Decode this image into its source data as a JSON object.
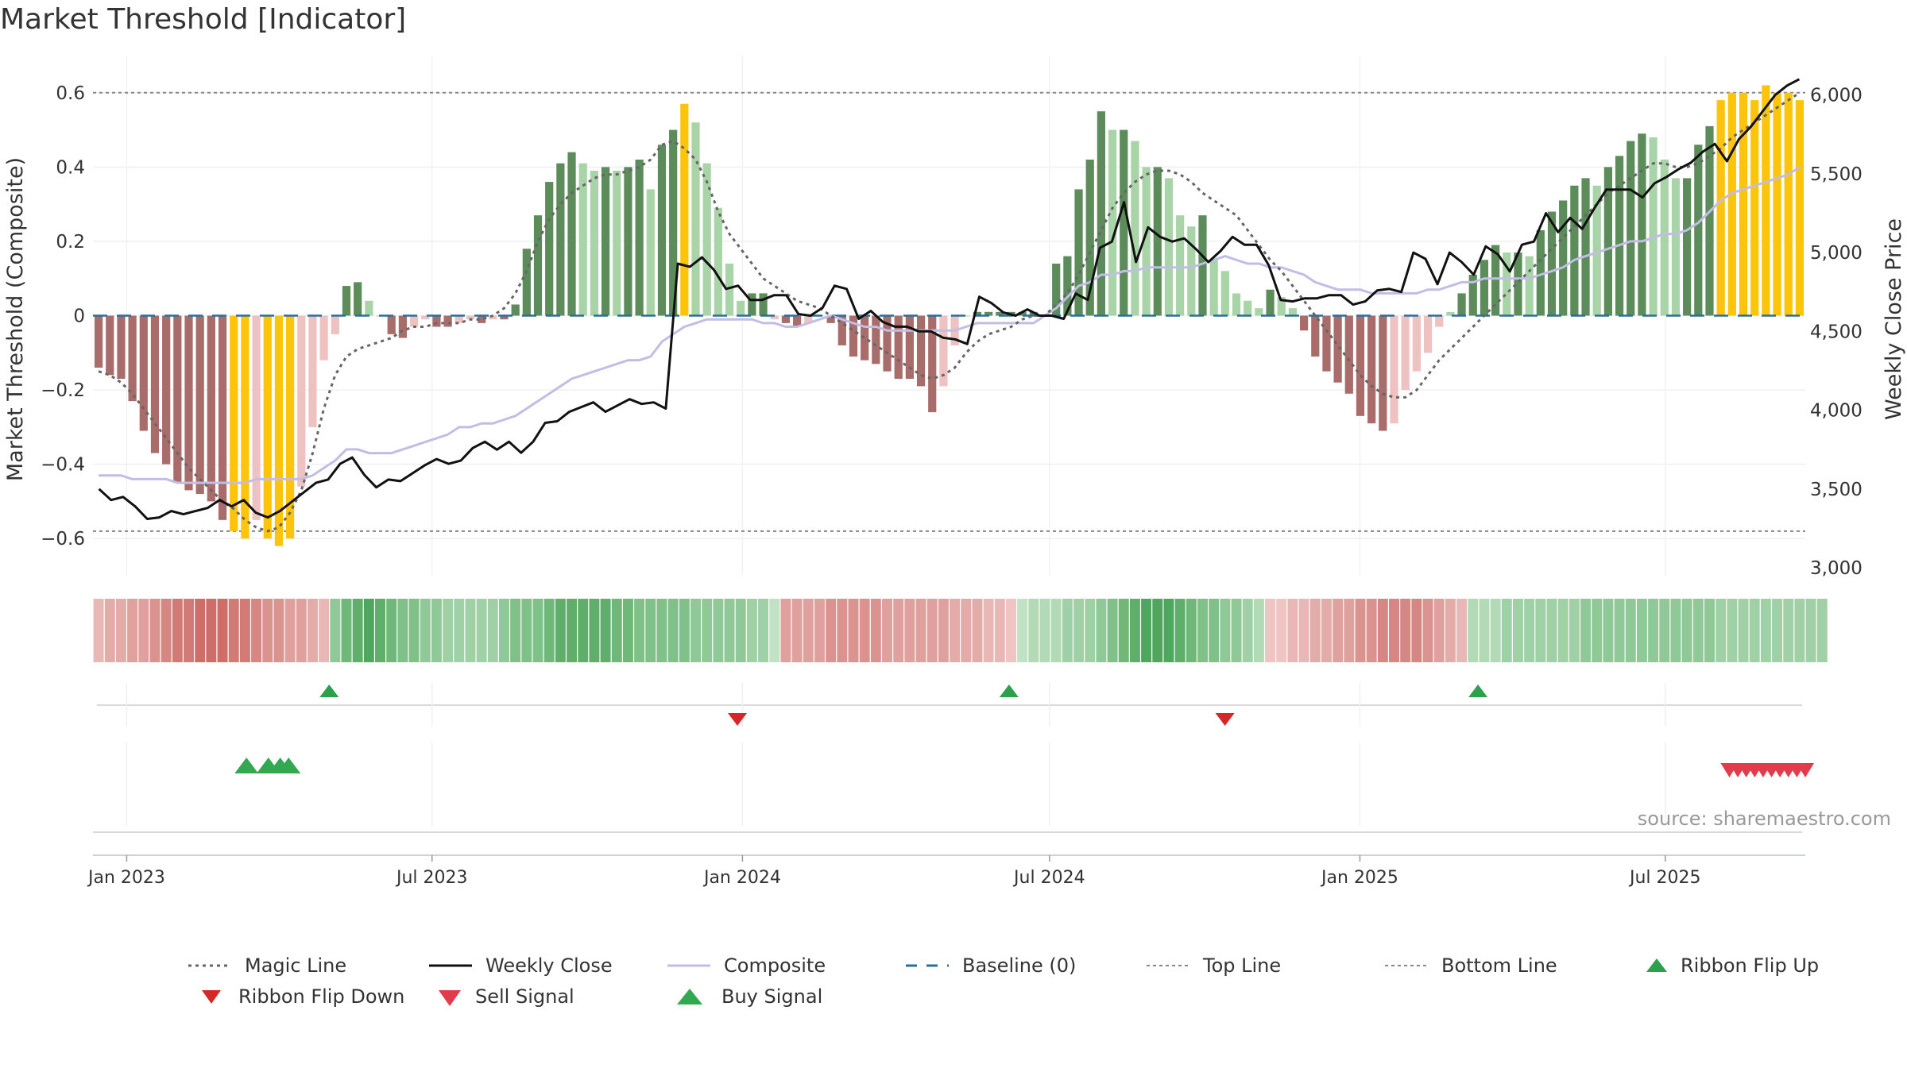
{
  "chart_data": {
    "type": "bar",
    "title": "Market Threshold [Indicator]",
    "ylabel": "Market Threshold (Composite)",
    "y2label": "Weekly Close Price",
    "ylim": [
      -0.7,
      0.7
    ],
    "y2lim": [
      2950,
      6250
    ],
    "yticks": [
      "0.6",
      "0.4",
      "0.2",
      "0",
      "−0.2",
      "−0.4",
      "−0.6"
    ],
    "yticks_values": [
      0.6,
      0.4,
      0.2,
      0,
      -0.2,
      -0.4,
      -0.6
    ],
    "y2ticks": [
      "6,000",
      "5,500",
      "5,000",
      "4,500",
      "4,000",
      "3,500",
      "3,000"
    ],
    "y2ticks_values": [
      6000,
      5500,
      5000,
      4500,
      4000,
      3500,
      3000
    ],
    "xticks": [
      "Jan 2023",
      "Jul 2023",
      "Jan 2024",
      "Jul 2024",
      "Jan 2025",
      "Jul 2025"
    ],
    "xticks_values": [
      "2023-01-01",
      "2023-07-01",
      "2024-01-01",
      "2024-07-01",
      "2025-01-01",
      "2025-07-01"
    ],
    "x_start": "2022-12-12",
    "x_end": "2025-09-22",
    "top_line": 0.6,
    "bottom_line": -0.58,
    "grid": true,
    "source": "source: sharemaestro.com",
    "composite_bars": [
      -0.14,
      -0.16,
      -0.17,
      -0.23,
      -0.31,
      -0.37,
      -0.4,
      -0.45,
      -0.47,
      -0.48,
      -0.5,
      -0.55,
      -0.58,
      -0.6,
      -0.55,
      -0.6,
      -0.62,
      -0.6,
      -0.46,
      -0.3,
      -0.12,
      -0.05,
      0.08,
      0.09,
      0.04,
      0.0,
      -0.05,
      -0.06,
      -0.03,
      -0.01,
      -0.03,
      -0.03,
      -0.02,
      -0.01,
      -0.02,
      -0.01,
      -0.01,
      0.03,
      0.18,
      0.27,
      0.36,
      0.41,
      0.44,
      0.41,
      0.39,
      0.4,
      0.39,
      0.4,
      0.42,
      0.34,
      0.46,
      0.5,
      0.57,
      0.52,
      0.41,
      0.29,
      0.14,
      0.04,
      0.06,
      0.06,
      -0.01,
      -0.02,
      -0.03,
      -0.02,
      0.0,
      -0.02,
      -0.08,
      -0.11,
      -0.12,
      -0.13,
      -0.15,
      -0.17,
      -0.17,
      -0.19,
      -0.26,
      -0.19,
      -0.08,
      0.0,
      0.01,
      0.01,
      0.01,
      0.01,
      0.01,
      0.01,
      0.0,
      0.14,
      0.16,
      0.34,
      0.42,
      0.55,
      0.5,
      0.5,
      0.47,
      0.4,
      0.4,
      0.37,
      0.27,
      0.24,
      0.27,
      0.15,
      0.12,
      0.06,
      0.04,
      0.02,
      0.07,
      0.05,
      0.02,
      -0.04,
      -0.11,
      -0.15,
      -0.18,
      -0.21,
      -0.27,
      -0.29,
      -0.31,
      -0.29,
      -0.2,
      -0.15,
      -0.1,
      -0.03,
      0.01,
      0.06,
      0.11,
      0.15,
      0.19,
      0.17,
      0.17,
      0.16,
      0.23,
      0.28,
      0.31,
      0.35,
      0.37,
      0.35,
      0.4,
      0.43,
      0.47,
      0.49,
      0.48,
      0.42,
      0.37,
      0.37,
      0.46,
      0.51,
      0.58,
      0.6,
      0.6,
      0.58,
      0.62,
      0.6,
      0.6,
      0.58
    ],
    "weekly_close": [
      3500,
      3430,
      3450,
      3390,
      3310,
      3320,
      3360,
      3340,
      3360,
      3380,
      3430,
      3390,
      3430,
      3350,
      3320,
      3360,
      3420,
      3480,
      3540,
      3560,
      3660,
      3700,
      3590,
      3510,
      3560,
      3550,
      3600,
      3650,
      3690,
      3660,
      3680,
      3760,
      3800,
      3750,
      3800,
      3730,
      3800,
      3920,
      3930,
      3990,
      4020,
      4050,
      3990,
      4030,
      4070,
      4040,
      4050,
      4010,
      4930,
      4910,
      4970,
      4890,
      4770,
      4790,
      4700,
      4700,
      4730,
      4730,
      4610,
      4600,
      4650,
      4790,
      4770,
      4580,
      4630,
      4560,
      4530,
      4530,
      4500,
      4500,
      4460,
      4450,
      4420,
      4720,
      4680,
      4620,
      4600,
      4640,
      4600,
      4600,
      4580,
      4740,
      4700,
      5030,
      5070,
      5320,
      4940,
      5160,
      5100,
      5070,
      5090,
      5020,
      4940,
      5010,
      5100,
      5050,
      5050,
      4920,
      4700,
      4690,
      4710,
      4710,
      4730,
      4730,
      4670,
      4690,
      4760,
      4770,
      4750,
      5000,
      4960,
      4800,
      5000,
      4940,
      4860,
      5040,
      4990,
      4880,
      5050,
      5070,
      5250,
      5130,
      5220,
      5150,
      5280,
      5400,
      5400,
      5400,
      5350,
      5440,
      5480,
      5530,
      5570,
      5640,
      5690,
      5580,
      5720,
      5800,
      5900,
      6000,
      6060,
      6100
    ],
    "magic_line": [
      -0.15,
      -0.16,
      -0.18,
      -0.21,
      -0.25,
      -0.29,
      -0.33,
      -0.37,
      -0.41,
      -0.44,
      -0.47,
      -0.5,
      -0.52,
      -0.55,
      -0.57,
      -0.58,
      -0.57,
      -0.53,
      -0.47,
      -0.37,
      -0.25,
      -0.16,
      -0.11,
      -0.09,
      -0.08,
      -0.07,
      -0.06,
      -0.04,
      -0.03,
      -0.03,
      -0.02,
      -0.02,
      -0.02,
      -0.01,
      -0.01,
      0.0,
      0.02,
      0.06,
      0.12,
      0.2,
      0.26,
      0.3,
      0.33,
      0.35,
      0.37,
      0.38,
      0.38,
      0.39,
      0.4,
      0.42,
      0.46,
      0.47,
      0.45,
      0.42,
      0.36,
      0.28,
      0.22,
      0.18,
      0.14,
      0.1,
      0.08,
      0.06,
      0.04,
      0.03,
      0.02,
      0.0,
      -0.02,
      -0.04,
      -0.06,
      -0.08,
      -0.1,
      -0.12,
      -0.14,
      -0.16,
      -0.17,
      -0.16,
      -0.14,
      -0.1,
      -0.07,
      -0.05,
      -0.04,
      -0.03,
      -0.01,
      0.0,
      0.0,
      0.03,
      0.06,
      0.11,
      0.17,
      0.23,
      0.29,
      0.33,
      0.36,
      0.38,
      0.39,
      0.39,
      0.38,
      0.36,
      0.33,
      0.31,
      0.29,
      0.27,
      0.23,
      0.19,
      0.15,
      0.12,
      0.08,
      0.04,
      0.0,
      -0.04,
      -0.08,
      -0.12,
      -0.16,
      -0.19,
      -0.21,
      -0.22,
      -0.22,
      -0.2,
      -0.16,
      -0.12,
      -0.09,
      -0.06,
      -0.03,
      0.0,
      0.03,
      0.06,
      0.09,
      0.12,
      0.15,
      0.18,
      0.21,
      0.24,
      0.27,
      0.3,
      0.33,
      0.35,
      0.37,
      0.39,
      0.41,
      0.41,
      0.4,
      0.4,
      0.41,
      0.43,
      0.45,
      0.48,
      0.5,
      0.52,
      0.54,
      0.56,
      0.58,
      0.6
    ],
    "composite_line": [
      -0.43,
      -0.43,
      -0.43,
      -0.44,
      -0.44,
      -0.44,
      -0.44,
      -0.45,
      -0.45,
      -0.45,
      -0.45,
      -0.45,
      -0.45,
      -0.45,
      -0.44,
      -0.44,
      -0.44,
      -0.44,
      -0.44,
      -0.43,
      -0.41,
      -0.39,
      -0.36,
      -0.36,
      -0.37,
      -0.37,
      -0.37,
      -0.36,
      -0.35,
      -0.34,
      -0.33,
      -0.32,
      -0.3,
      -0.3,
      -0.29,
      -0.29,
      -0.28,
      -0.27,
      -0.25,
      -0.23,
      -0.21,
      -0.19,
      -0.17,
      -0.16,
      -0.15,
      -0.14,
      -0.13,
      -0.12,
      -0.12,
      -0.11,
      -0.07,
      -0.05,
      -0.03,
      -0.02,
      -0.01,
      -0.01,
      -0.01,
      -0.01,
      -0.01,
      -0.02,
      -0.02,
      -0.03,
      -0.03,
      -0.02,
      -0.01,
      0.0,
      -0.01,
      -0.02,
      -0.03,
      -0.03,
      -0.04,
      -0.04,
      -0.04,
      -0.04,
      -0.04,
      -0.04,
      -0.04,
      -0.03,
      -0.02,
      -0.02,
      -0.02,
      -0.02,
      -0.02,
      -0.02,
      0.0,
      0.02,
      0.05,
      0.08,
      0.09,
      0.11,
      0.11,
      0.12,
      0.12,
      0.13,
      0.13,
      0.13,
      0.13,
      0.13,
      0.14,
      0.15,
      0.16,
      0.15,
      0.14,
      0.14,
      0.13,
      0.13,
      0.12,
      0.11,
      0.09,
      0.08,
      0.07,
      0.07,
      0.07,
      0.06,
      0.06,
      0.06,
      0.06,
      0.06,
      0.07,
      0.07,
      0.08,
      0.09,
      0.09,
      0.1,
      0.1,
      0.1,
      0.1,
      0.1,
      0.11,
      0.12,
      0.13,
      0.15,
      0.16,
      0.17,
      0.18,
      0.19,
      0.2,
      0.2,
      0.21,
      0.22,
      0.22,
      0.23,
      0.25,
      0.28,
      0.31,
      0.33,
      0.34,
      0.35,
      0.36,
      0.37,
      0.38,
      0.4
    ],
    "ribbon": [
      -0.3,
      -0.4,
      -0.4,
      -0.5,
      -0.5,
      -0.6,
      -0.7,
      -0.8,
      -0.8,
      -0.9,
      -0.9,
      -0.9,
      -0.8,
      -0.8,
      -0.7,
      -0.6,
      -0.6,
      -0.5,
      -0.5,
      -0.4,
      -0.3,
      0.5,
      0.7,
      0.8,
      0.9,
      0.8,
      0.7,
      0.6,
      0.6,
      0.5,
      0.5,
      0.4,
      0.4,
      0.4,
      0.4,
      0.4,
      0.5,
      0.6,
      0.6,
      0.6,
      0.7,
      0.8,
      0.8,
      0.8,
      0.8,
      0.8,
      0.7,
      0.7,
      0.6,
      0.6,
      0.6,
      0.6,
      0.6,
      0.5,
      0.5,
      0.5,
      0.5,
      0.5,
      0.4,
      0.4,
      0.2,
      -0.5,
      -0.5,
      -0.5,
      -0.5,
      -0.6,
      -0.6,
      -0.6,
      -0.6,
      -0.6,
      -0.5,
      -0.5,
      -0.5,
      -0.5,
      -0.5,
      -0.5,
      -0.4,
      -0.4,
      -0.4,
      -0.3,
      -0.3,
      -0.2,
      0.2,
      0.3,
      0.3,
      0.3,
      0.4,
      0.4,
      0.4,
      0.5,
      0.6,
      0.7,
      0.8,
      0.9,
      0.9,
      0.9,
      0.8,
      0.7,
      0.6,
      0.6,
      0.5,
      0.5,
      0.4,
      0.3,
      -0.2,
      -0.2,
      -0.3,
      -0.3,
      -0.4,
      -0.4,
      -0.5,
      -0.5,
      -0.6,
      -0.6,
      -0.7,
      -0.7,
      -0.7,
      -0.7,
      -0.6,
      -0.5,
      -0.4,
      -0.3,
      0.3,
      0.3,
      0.3,
      0.4,
      0.4,
      0.4,
      0.4,
      0.4,
      0.4,
      0.4,
      0.5,
      0.5,
      0.5,
      0.5,
      0.5,
      0.5,
      0.5,
      0.5,
      0.5,
      0.5,
      0.5,
      0.5,
      0.4,
      0.4,
      0.4,
      0.4,
      0.4,
      0.4,
      0.4,
      0.4,
      0.4,
      0.4
    ],
    "ribbon_flips": [
      {
        "date": "2023-05-01",
        "dir": "up"
      },
      {
        "date": "2023-12-29",
        "dir": "down"
      },
      {
        "date": "2024-06-07",
        "dir": "up"
      },
      {
        "date": "2024-10-13",
        "dir": "down"
      },
      {
        "date": "2025-03-12",
        "dir": "up"
      }
    ],
    "buy_signals": [
      "2023-03-13",
      "2023-03-26",
      "2023-04-02",
      "2023-04-07"
    ],
    "sell_signals": [
      "2025-08-08",
      "2025-08-13",
      "2025-08-18",
      "2025-08-23",
      "2025-08-28",
      "2025-09-02",
      "2025-09-07",
      "2025-09-12",
      "2025-09-17",
      "2025-09-22"
    ],
    "legend": [
      {
        "key": "magic",
        "label": "Magic Line"
      },
      {
        "key": "close",
        "label": "Weekly Close"
      },
      {
        "key": "composite",
        "label": "Composite"
      },
      {
        "key": "baseline",
        "label": "Baseline (0)"
      },
      {
        "key": "top",
        "label": "Top Line"
      },
      {
        "key": "bottom",
        "label": "Bottom Line"
      },
      {
        "key": "flipup",
        "label": "Ribbon Flip Up"
      },
      {
        "key": "flipdown",
        "label": "Ribbon Flip Down"
      },
      {
        "key": "sell",
        "label": "Sell Signal"
      },
      {
        "key": "buy",
        "label": "Buy Signal"
      }
    ],
    "colors": {
      "bar_strong_up": "#5b8c5a",
      "bar_weak_up": "#a9d4a8",
      "bar_strong_down": "#a86d6a",
      "bar_weak_down": "#eec2c0",
      "bar_extreme": "#fcc40a",
      "close": "#111111",
      "composite": "#c2bde6",
      "magic": "#666666",
      "baseline": "#2a6f9a",
      "threshold": "#888888",
      "flip_up": "#2ca04c",
      "flip_down": "#d62728",
      "buy": "#33a852",
      "sell": "#e03c4b"
    }
  }
}
